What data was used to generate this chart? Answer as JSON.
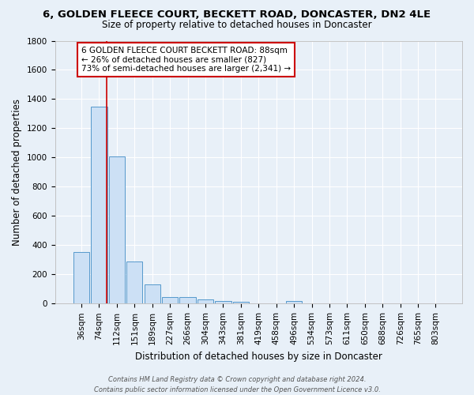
{
  "title": "6, GOLDEN FLEECE COURT, BECKETT ROAD, DONCASTER, DN2 4LE",
  "subtitle": "Size of property relative to detached houses in Doncaster",
  "xlabel": "Distribution of detached houses by size in Doncaster",
  "ylabel": "Number of detached properties",
  "footer_line1": "Contains HM Land Registry data © Crown copyright and database right 2024.",
  "footer_line2": "Contains public sector information licensed under the Open Government Licence v3.0.",
  "bar_labels": [
    "36sqm",
    "74sqm",
    "112sqm",
    "151sqm",
    "189sqm",
    "227sqm",
    "266sqm",
    "304sqm",
    "343sqm",
    "381sqm",
    "419sqm",
    "458sqm",
    "496sqm",
    "534sqm",
    "573sqm",
    "611sqm",
    "650sqm",
    "688sqm",
    "726sqm",
    "765sqm",
    "803sqm"
  ],
  "bar_values": [
    355,
    1350,
    1010,
    290,
    130,
    45,
    45,
    30,
    18,
    15,
    0,
    0,
    18,
    0,
    0,
    0,
    0,
    0,
    0,
    0,
    0
  ],
  "bar_color": "#cce0f5",
  "bar_edge_color": "#5599cc",
  "vline_color": "#cc0000",
  "vline_pos": 1.42,
  "annotation_text": "6 GOLDEN FLEECE COURT BECKETT ROAD: 88sqm\n← 26% of detached houses are smaller (827)\n73% of semi-detached houses are larger (2,341) →",
  "annotation_box_facecolor": "#ffffff",
  "annotation_box_edgecolor": "#cc0000",
  "ylim": [
    0,
    1800
  ],
  "yticks": [
    0,
    200,
    400,
    600,
    800,
    1000,
    1200,
    1400,
    1600,
    1800
  ],
  "bg_color": "#e8f0f8",
  "grid_color": "#ffffff",
  "title_fontsize": 9.5,
  "subtitle_fontsize": 8.5,
  "axis_label_fontsize": 8.5,
  "tick_fontsize": 7.5,
  "annotation_fontsize": 7.5,
  "footer_fontsize": 6.0
}
